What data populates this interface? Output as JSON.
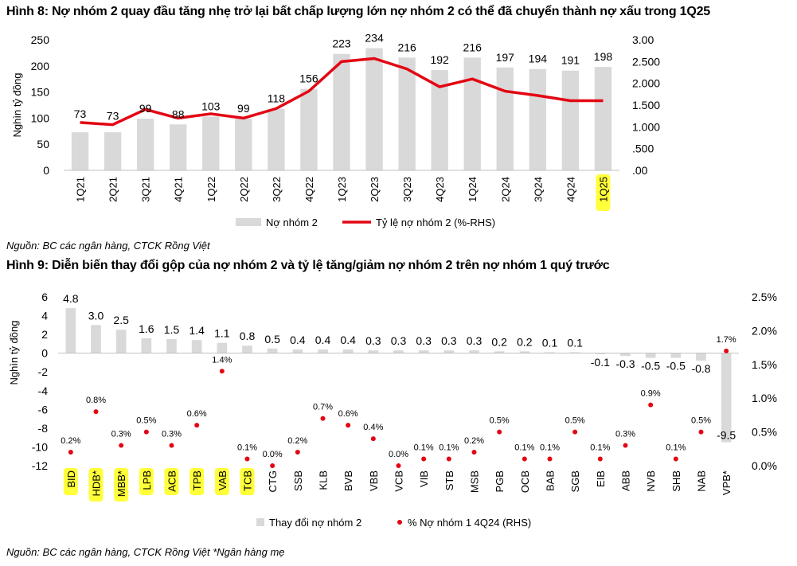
{
  "colors": {
    "bar": "#d9d9d9",
    "line": "#e30613",
    "dot": "#e30613",
    "highlight": "#ffff3a",
    "text": "#000000",
    "axis": "#bfbfbf"
  },
  "fig8": {
    "title": "Hình 8: Nợ nhóm 2 quay đầu tăng nhẹ trở lại bất chấp lượng lớn nợ nhóm 2 có thể đã chuyển thành nợ xấu trong 1Q25",
    "source": "Nguồn: BC các ngân hàng, CTCK Rồng Việt"
  },
  "fig9": {
    "title": "Hình 9: Diễn biến thay đổi gộp của nợ nhóm 2 và tỷ lệ tăng/giảm nợ nhóm 2 trên nợ nhóm 1 quý trước",
    "source": "Nguồn: BC các ngân hàng, CTCK Rồng Việt *Ngân hàng mẹ"
  },
  "chart_data": [
    {
      "type": "bar",
      "title": "Hình 8: Nợ nhóm 2 quay đầu tăng nhẹ trở lại bất chấp lượng lớn nợ nhóm 2 có thể đã chuyển thành nợ xấu trong 1Q25",
      "ylabel": "Nghìn tỷ đồng",
      "categories": [
        "1Q21",
        "2Q21",
        "3Q21",
        "4Q21",
        "1Q22",
        "2Q22",
        "3Q22",
        "4Q22",
        "1Q23",
        "2Q23",
        "3Q23",
        "4Q23",
        "1Q24",
        "2Q24",
        "3Q24",
        "4Q24",
        "1Q25"
      ],
      "highlighted": [
        "1Q25"
      ],
      "series": [
        {
          "name": "Nợ nhóm 2",
          "kind": "bar",
          "axis": "left",
          "values": [
            73,
            73,
            99,
            88,
            103,
            99,
            118,
            156,
            223,
            234,
            216,
            192,
            216,
            197,
            194,
            191,
            198
          ],
          "labels": [
            "73",
            "73",
            "99",
            "88",
            "103",
            "99",
            "118",
            "156",
            "223",
            "234",
            "216",
            "192",
            "216",
            "197",
            "194",
            "191",
            "198"
          ]
        },
        {
          "name": "Tỷ lệ nợ nhóm 2 (%-RHS)",
          "kind": "line",
          "axis": "right",
          "values": [
            1.1,
            1.05,
            1.4,
            1.2,
            1.3,
            1.2,
            1.42,
            1.82,
            2.5,
            2.57,
            2.33,
            1.92,
            2.1,
            1.82,
            1.72,
            1.6,
            1.6
          ]
        }
      ],
      "ylim": [
        0,
        250
      ],
      "yticks": [
        "0",
        "50",
        "100",
        "150",
        "200",
        "250"
      ],
      "y2lim": [
        0,
        3
      ],
      "y2ticks": [
        ".00",
        ".500",
        "1.000",
        "1.500",
        "2.000",
        "2.500",
        "3.00"
      ],
      "legend": [
        "Nợ nhóm 2",
        "Tỷ lệ nợ nhóm 2 (%-RHS)"
      ],
      "legend_position": "bottom-center"
    },
    {
      "type": "bar",
      "title": "Hình 9: Diễn biến thay đổi gộp của nợ nhóm 2 và tỷ lệ tăng/giảm nợ nhóm 2 trên nợ nhóm 1 quý trước",
      "ylabel": "Nghìn tỷ đồng",
      "categories": [
        "BID",
        "HDB*",
        "MBB*",
        "LPB",
        "ACB",
        "TPB",
        "VAB",
        "TCB",
        "CTG",
        "SSB",
        "KLB",
        "BVB",
        "VBB",
        "VCB",
        "VIB",
        "STB",
        "MSB",
        "PGB",
        "OCB",
        "BAB",
        "SGB",
        "EIB",
        "ABB",
        "NVB",
        "SHB",
        "NAB",
        "VPB*"
      ],
      "highlighted": [
        "BID",
        "HDB*",
        "MBB*",
        "LPB",
        "ACB",
        "TPB",
        "VAB",
        "TCB"
      ],
      "series": [
        {
          "name": "Thay đổi nợ nhóm 2",
          "kind": "bar",
          "axis": "left",
          "values": [
            4.8,
            3.0,
            2.5,
            1.6,
            1.5,
            1.4,
            1.1,
            0.8,
            0.5,
            0.4,
            0.4,
            0.4,
            0.3,
            0.3,
            0.3,
            0.3,
            0.3,
            0.2,
            0.2,
            0.1,
            0.1,
            -0.1,
            -0.3,
            -0.5,
            -0.5,
            -0.8,
            -9.5
          ],
          "labels": [
            "4.8",
            "3.0",
            "2.5",
            "1.6",
            "1.5",
            "1.4",
            "1.1",
            "0.8",
            "0.5",
            "0.4",
            "0.4",
            "0.4",
            "0.3",
            "0.3",
            "0.3",
            "0.3",
            "0.3",
            "0.2",
            "0.2",
            "0.1",
            "0.1",
            "-0.1",
            "-0.3",
            "-0.5",
            "-0.5",
            "-0.8",
            "-9.5"
          ]
        },
        {
          "name": "% Nợ nhóm 1 4Q24 (RHS)",
          "kind": "scatter",
          "axis": "right",
          "values": [
            0.2,
            0.8,
            0.3,
            0.5,
            0.3,
            0.6,
            1.4,
            0.1,
            0.0,
            0.2,
            0.7,
            0.6,
            0.4,
            0.0,
            0.1,
            0.1,
            0.2,
            0.5,
            0.1,
            0.1,
            0.5,
            0.1,
            0.3,
            0.9,
            0.1,
            0.5,
            1.7
          ],
          "labels": [
            "0.2%",
            "0.8%",
            "0.3%",
            "0.5%",
            "0.3%",
            "0.6%",
            "1.4%",
            "0.1%",
            "0.0%",
            "0.2%",
            "0.7%",
            "0.6%",
            "0.4%",
            "0.0%",
            "0.1%",
            "0.1%",
            "0.2%",
            "0.5%",
            "0.1%",
            "0.1%",
            "0.5%",
            "0.1%",
            "0.3%",
            "0.9%",
            "0.1%",
            "0.5%",
            "1.7%"
          ]
        }
      ],
      "ylim": [
        -12,
        6
      ],
      "yticks": [
        "-12",
        "-10",
        "-8",
        "-6",
        "-4",
        "-2",
        "0",
        "2",
        "4",
        "6"
      ],
      "y2lim": [
        0,
        2.5
      ],
      "y2ticks": [
        "0.0%",
        "0.5%",
        "1.0%",
        "1.5%",
        "2.0%",
        "2.5%"
      ],
      "legend": [
        "Thay đổi nợ nhóm 2",
        "% Nợ nhóm 1 4Q24 (RHS)"
      ],
      "legend_position": "bottom-center"
    }
  ]
}
